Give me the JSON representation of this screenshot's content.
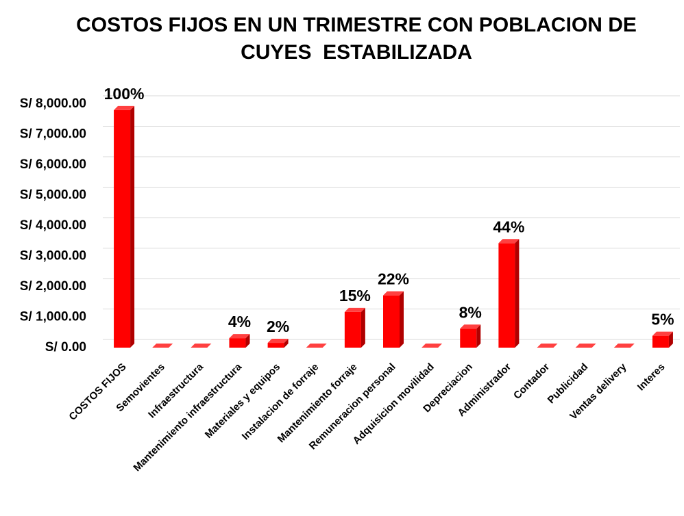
{
  "chart_data": {
    "type": "bar",
    "title": "COSTOS FIJOS EN UN TRIMESTRE CON POBLACION DE CUYES  ESTABILIZADA",
    "categories": [
      "COSTOS FIJOS",
      "Semovientes",
      "Infraestructura",
      "Mantenimiento infraestructura",
      "Materiales y equipos",
      "Instalacion de forraje",
      "Mantenimiento forraje",
      "Remuneracion personal",
      "Adquisicion movilidad",
      "Depreciacion",
      "Administrador",
      "Contador",
      "Publicidad",
      "Ventas delivery",
      "Interes"
    ],
    "values": [
      7800,
      0,
      0,
      312,
      156,
      0,
      1170,
      1716,
      0,
      624,
      3432,
      0,
      0,
      0,
      390
    ],
    "value_labels": [
      "100%",
      null,
      null,
      "4%",
      "2%",
      null,
      "15%",
      "22%",
      null,
      "8%",
      "44%",
      null,
      null,
      null,
      "5%"
    ],
    "color": "#ff0000",
    "ylim": [
      0,
      8000
    ],
    "yticks": [
      {
        "value": 0,
        "label": "S/ 0.00"
      },
      {
        "value": 1000,
        "label": "S/ 1,000.00"
      },
      {
        "value": 2000,
        "label": "S/ 2,000.00"
      },
      {
        "value": 3000,
        "label": "S/ 3,000.00"
      },
      {
        "value": 4000,
        "label": "S/ 4,000.00"
      },
      {
        "value": 5000,
        "label": "S/ 5,000.00"
      },
      {
        "value": 6000,
        "label": "S/ 6,000.00"
      },
      {
        "value": 7000,
        "label": "S/ 7,000.00"
      },
      {
        "value": 8000,
        "label": "S/ 8,000.00"
      }
    ],
    "grid": true
  }
}
